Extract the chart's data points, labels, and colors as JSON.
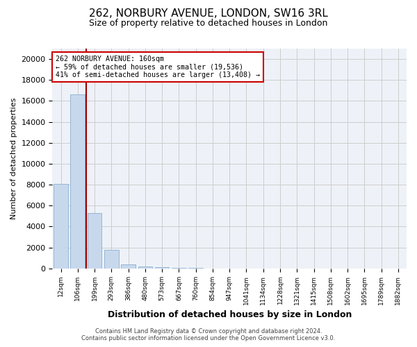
{
  "title_line1": "262, NORBURY AVENUE, LONDON, SW16 3RL",
  "title_line2": "Size of property relative to detached houses in London",
  "xlabel": "Distribution of detached houses by size in London",
  "ylabel": "Number of detached properties",
  "bar_color": "#c8d8ec",
  "bar_edge_color": "#8aaed0",
  "categories": [
    "12sqm",
    "106sqm",
    "199sqm",
    "293sqm",
    "386sqm",
    "480sqm",
    "573sqm",
    "667sqm",
    "760sqm",
    "854sqm",
    "947sqm",
    "1041sqm",
    "1134sqm",
    "1228sqm",
    "1321sqm",
    "1415sqm",
    "1508sqm",
    "1602sqm",
    "1695sqm",
    "1789sqm",
    "1882sqm"
  ],
  "values": [
    8050,
    16600,
    5300,
    1750,
    380,
    200,
    130,
    80,
    40,
    20,
    10,
    5,
    3,
    2,
    1,
    1,
    0,
    0,
    0,
    0,
    0
  ],
  "ylim": [
    0,
    21000
  ],
  "yticks": [
    0,
    2000,
    4000,
    6000,
    8000,
    10000,
    12000,
    14000,
    16000,
    18000,
    20000
  ],
  "vline_x": 1.5,
  "annotation_line1": "262 NORBURY AVENUE: 160sqm",
  "annotation_line2": "← 59% of detached houses are smaller (19,536)",
  "annotation_line3": "41% of semi-detached houses are larger (13,408) →",
  "vline_color": "#990000",
  "annotation_box_edgecolor": "#cc0000",
  "grid_color": "#cccccc",
  "background_color": "#eef2f8",
  "footer_line1": "Contains HM Land Registry data © Crown copyright and database right 2024.",
  "footer_line2": "Contains public sector information licensed under the Open Government Licence v3.0."
}
